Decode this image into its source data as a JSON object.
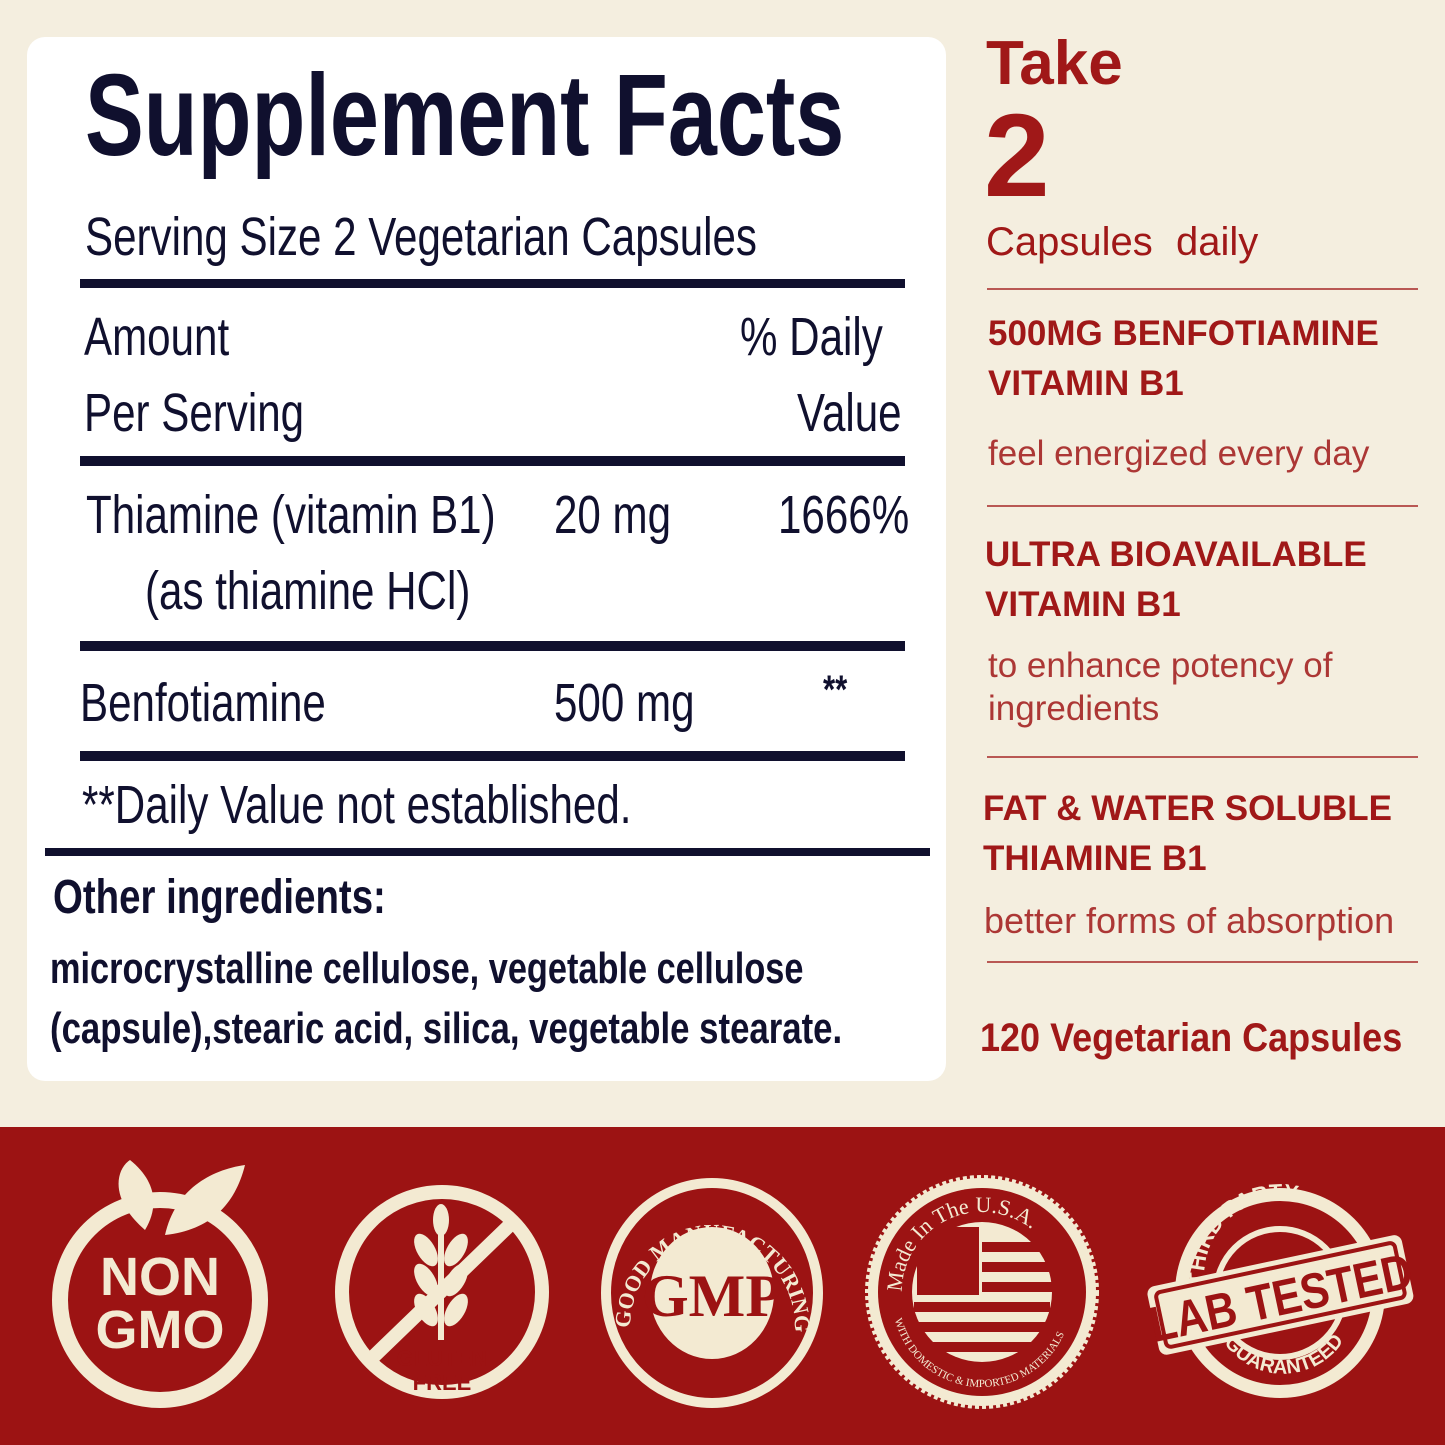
{
  "facts": {
    "title": "Supplement  Facts",
    "serving": "Serving Size 2 Vegetarian Capsules",
    "amount_header_1": "Amount",
    "amount_header_2": "Per Serving",
    "dv_header_1": "% Daily",
    "dv_header_2": "Value",
    "rows": [
      {
        "name": "Thiamine (vitamin B1)",
        "sub": "(as thiamine HCl)",
        "amount": "20 mg",
        "dv": "1666%"
      },
      {
        "name": "Benfotiamine",
        "amount": "500 mg",
        "dv": "**"
      }
    ],
    "footnote": "**Daily Value not established.",
    "other_title": "Other ingredients:",
    "other_line1": "microcrystalline cellulose, vegetable cellulose",
    "other_line2": "(capsule),stearic acid, silica, vegetable stearate."
  },
  "side": {
    "take": "Take",
    "count": "2",
    "capsules": "Capsules",
    "daily": "daily",
    "features": [
      {
        "h1": "500MG BENFOTIAMINE",
        "h2": "VITAMIN B1",
        "desc": "feel  energized every day"
      },
      {
        "h1": "ULTRA BIOAVAILABLE",
        "h2": "VITAMIN B1",
        "desc1": "to enhance potency of",
        "desc2": "ingredients"
      },
      {
        "h1": "FAT & WATER SOLUBLE",
        "h2": "THIAMINE B1",
        "desc": "better forms of absorption"
      }
    ],
    "capsule_count": "120 Vegetarian Capsules"
  },
  "badges": {
    "non_gmo_1": "NON",
    "non_gmo_2": "GMO",
    "gluten_1": "GLUTEN",
    "gluten_2": "FREE",
    "gmp": "GMP",
    "gmp_ring_top": "GOOD MANUFACTURING PRACTICE",
    "usa_top": "Made In The U.S.A.",
    "usa_bottom": "WITH DOMESTIC & IMPORTED MATERIALS",
    "lab_top": "THIRD PARTY",
    "lab_main": "LAB TESTED",
    "lab_bottom": "GUARANTEED"
  },
  "colors": {
    "background": "#f4eedf",
    "accent_red": "#9c1313",
    "text_navy": "#10102e",
    "badge_cream": "#f3ead2"
  }
}
